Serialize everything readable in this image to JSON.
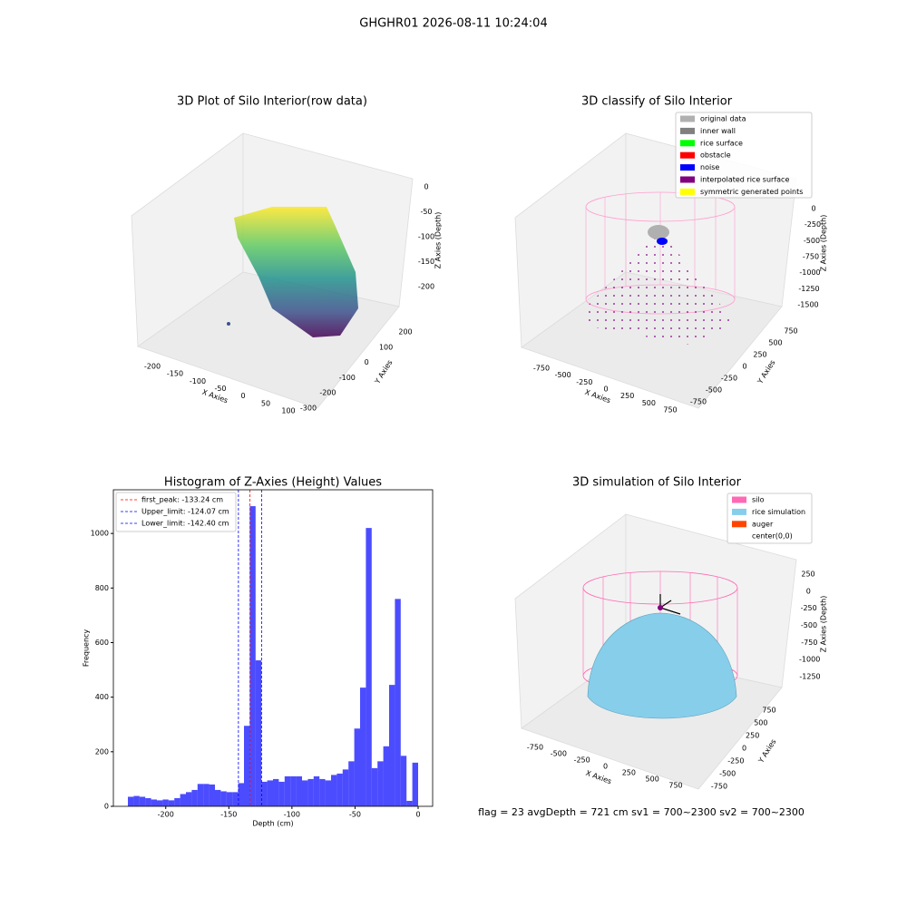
{
  "title": "GHGHR01 2026-08-11 10:24:04",
  "chart_data": [
    {
      "type": "scatter3d",
      "title": "3D Plot of Silo Interior(row data)",
      "x_label": "X Axies",
      "y_label": "Y Axies",
      "z_label": "Z Axies (Depth)",
      "xticks": [
        -200,
        -150,
        -100,
        -50,
        0,
        50,
        100
      ],
      "yticks": [
        -300,
        -200,
        -100,
        0,
        100,
        200
      ],
      "zticks": [
        -200,
        -150,
        -100,
        -50,
        0
      ]
    },
    {
      "type": "scatter3d",
      "title": "3D classify of Silo Interior",
      "x_label": "X Axies",
      "y_label": "Y Axies",
      "z_label": "Z Axies (Depth)",
      "xticks": [
        -750,
        -500,
        -250,
        0,
        250,
        500,
        750
      ],
      "yticks": [
        -750,
        -500,
        -250,
        0,
        250,
        500,
        750
      ],
      "zticks": [
        0,
        -250,
        -500,
        -750,
        -1000,
        -1250,
        -1500
      ],
      "legend": [
        {
          "name": "original data",
          "color": "#b0b0b0"
        },
        {
          "name": "inner wall",
          "color": "#808080"
        },
        {
          "name": "rice surface",
          "color": "#00ff00"
        },
        {
          "name": "obstacle",
          "color": "#ff0000"
        },
        {
          "name": "noise",
          "color": "#0000ff"
        },
        {
          "name": "interpolated rice surface",
          "color": "#800080"
        },
        {
          "name": "symmetric generated points",
          "color": "#ffff00"
        }
      ]
    },
    {
      "type": "histogram",
      "title": "Histogram of Z-Axies (Height) Values",
      "x_label": "Depth (cm)",
      "y_label": "Frequency",
      "color": "#0000ff",
      "bins": [
        -230,
        -225.4,
        -220.8,
        -216.2,
        -211.6,
        -207,
        -202.4,
        -197.8,
        -193.2,
        -188.6,
        -184,
        -179.4,
        -174.8,
        -170.2,
        -165.6,
        -161,
        -156.4,
        -151.8,
        -147.2,
        -142.6,
        -138,
        -133.4,
        -128.8,
        -124.2,
        -119.6,
        -115,
        -110.4,
        -105.8,
        -101.2,
        -96.6,
        -92,
        -87.4,
        -82.8,
        -78.2,
        -73.6,
        -69,
        -64.4,
        -59.8,
        -55.2,
        -50.6,
        -46,
        -41.4,
        -36.8,
        -32.2,
        -27.6,
        -23,
        -18.4,
        -13.8,
        -9.2,
        -4.6,
        0
      ],
      "values": [
        35,
        38,
        35,
        30,
        25,
        22,
        25,
        22,
        30,
        45,
        52,
        60,
        82,
        82,
        80,
        60,
        55,
        52,
        52,
        85,
        295,
        1100,
        535,
        90,
        95,
        100,
        90,
        110,
        110,
        110,
        95,
        100,
        110,
        100,
        95,
        115,
        120,
        135,
        165,
        285,
        435,
        1020,
        140,
        165,
        220,
        445,
        760,
        185,
        20,
        160
      ],
      "xlim": [
        -241.5,
        11.5
      ],
      "ylim": [
        0,
        1160
      ],
      "xticks": [
        -200,
        -150,
        -100,
        -50,
        0
      ],
      "yticks": [
        0,
        200,
        400,
        600,
        800,
        1000
      ],
      "vlines": [
        {
          "label": "first_peak: -133.24 cm",
          "value": -133.24,
          "color": "#ff0000"
        },
        {
          "label": "Upper_limit: -124.07 cm",
          "value": -124.07,
          "color": "#0000ff"
        },
        {
          "label": "Lower_limit: -142.40 cm",
          "value": -142.4,
          "color": "#0000ff"
        }
      ]
    },
    {
      "type": "surface3d",
      "title": "3D simulation of Silo Interior",
      "x_label": "X Axies",
      "y_label": "Y Axies",
      "z_label": "Z Axies (Depth)",
      "xticks": [
        -750,
        -500,
        -250,
        0,
        250,
        500,
        750
      ],
      "yticks": [
        -750,
        -500,
        -250,
        0,
        250,
        500,
        750
      ],
      "zticks": [
        250,
        0,
        -250,
        -500,
        -750,
        -1000,
        -1250
      ],
      "legend": [
        {
          "name": "silo",
          "color": "#ff69b4"
        },
        {
          "name": "rice simulation",
          "color": "#87ceeb"
        },
        {
          "name": "auger",
          "color": "#ff4500"
        },
        {
          "name": "center(0,0)",
          "color": "#ffffff"
        }
      ],
      "footer": "flag = 23  avgDepth = 721 cm  sv1 = 700~2300  sv2 = 700~2300"
    }
  ]
}
